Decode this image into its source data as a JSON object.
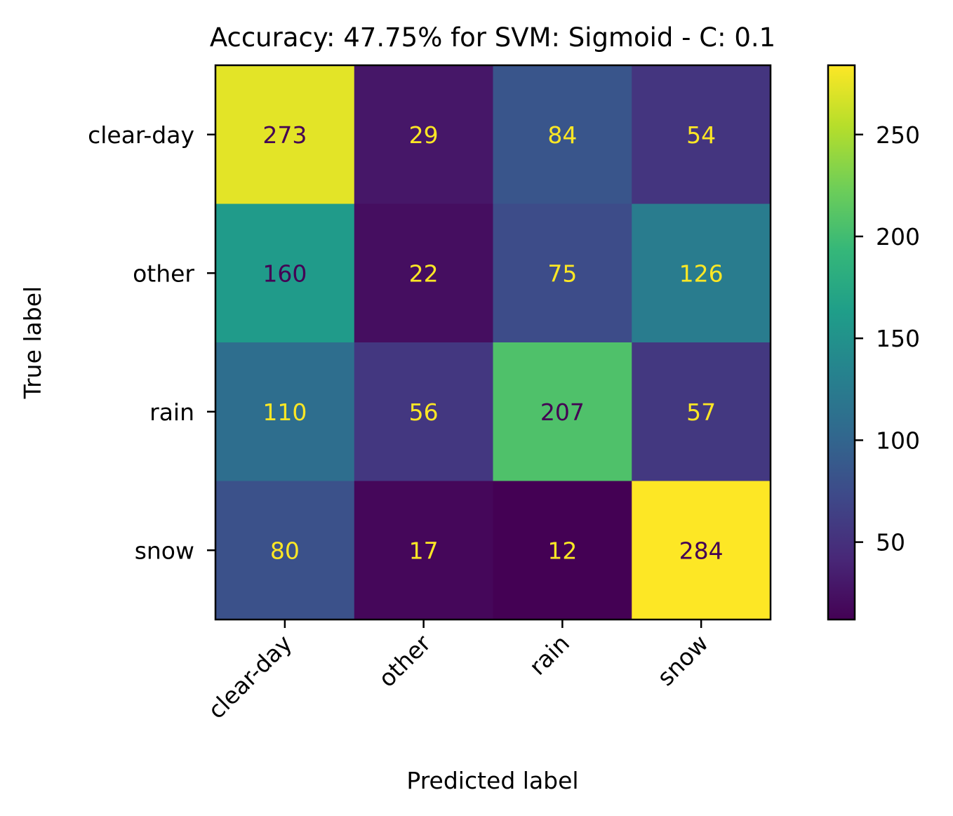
{
  "chart_data": {
    "type": "heatmap",
    "title": "Accuracy: 47.75% for SVM: Sigmoid - C: 0.1",
    "xlabel": "Predicted label",
    "ylabel": "True label",
    "x_categories": [
      "clear-day",
      "other",
      "rain",
      "snow"
    ],
    "y_categories": [
      "clear-day",
      "other",
      "rain",
      "snow"
    ],
    "values": [
      [
        273,
        29,
        84,
        54
      ],
      [
        160,
        22,
        75,
        126
      ],
      [
        110,
        56,
        207,
        57
      ],
      [
        80,
        17,
        12,
        284
      ]
    ],
    "colormap": "viridis",
    "colorbar": {
      "min": 12,
      "max": 284,
      "ticks": [
        50,
        100,
        150,
        200,
        250
      ]
    },
    "text_color_light": "#fde725",
    "text_color_dark": "#440154"
  }
}
